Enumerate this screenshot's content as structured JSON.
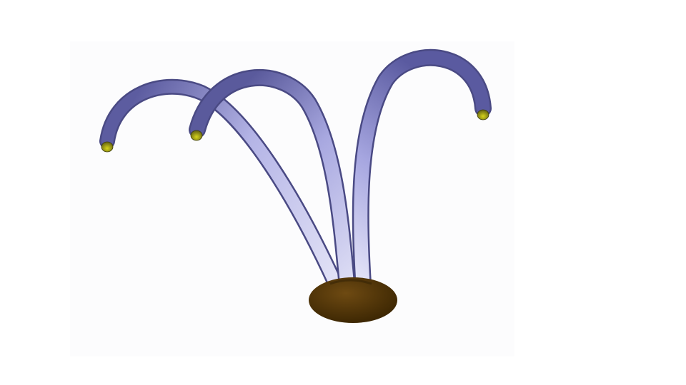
{
  "scene": {
    "subject": "3d-stalk-model",
    "colors": {
      "background": "#ffffff",
      "backdrop_panel": "#fcfcfd",
      "stalk_light": "#d9d9f3",
      "stalk_mid": "#a8a8e0",
      "stalk_dark": "#5c5ca0",
      "base_light": "#6e4a12",
      "base_dark": "#3a2502",
      "tip_light": "#d6d41a",
      "tip_dark": "#5a5a10"
    },
    "stalk_count": 3,
    "tip_count": 3
  }
}
